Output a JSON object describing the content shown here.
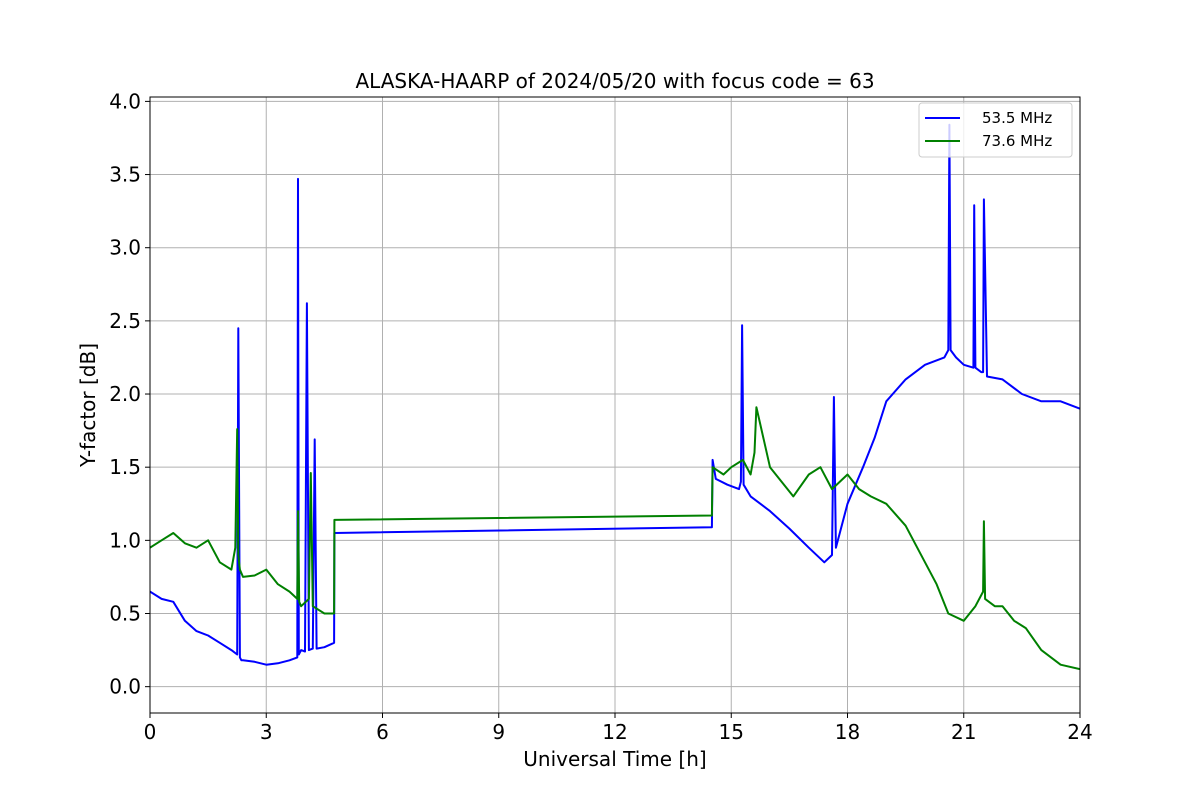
{
  "chart_data": {
    "type": "line",
    "title": "ALASKA-HAARP of 2024/05/20 with focus code = 63",
    "xlabel": "Universal Time [h]",
    "ylabel": "Y-factor [dB]",
    "xlim": [
      0,
      24
    ],
    "ylim": [
      -0.18,
      4.03
    ],
    "xticks": [
      0,
      3,
      6,
      9,
      12,
      15,
      18,
      21,
      24
    ],
    "xtick_labels": [
      "0",
      "3",
      "6",
      "9",
      "12",
      "15",
      "18",
      "21",
      "24"
    ],
    "yticks": [
      0.0,
      0.5,
      1.0,
      1.5,
      2.0,
      2.5,
      3.0,
      3.5,
      4.0
    ],
    "ytick_labels": [
      "0.0",
      "0.5",
      "1.0",
      "1.5",
      "2.0",
      "2.5",
      "3.0",
      "3.5",
      "4.0"
    ],
    "grid": true,
    "legend_position": "top-right",
    "series": [
      {
        "name": "53.5 MHz",
        "color": "#0000ff",
        "x": [
          0.0,
          0.3,
          0.6,
          0.9,
          1.2,
          1.5,
          1.8,
          2.1,
          2.25,
          2.28,
          2.32,
          2.36,
          2.4,
          2.7,
          3.0,
          3.3,
          3.6,
          3.8,
          3.82,
          3.84,
          3.9,
          4.0,
          4.05,
          4.1,
          4.2,
          4.25,
          4.3,
          4.5,
          4.75,
          4.76,
          14.5,
          14.52,
          14.6,
          14.9,
          15.2,
          15.25,
          15.28,
          15.32,
          15.5,
          16.0,
          16.5,
          17.0,
          17.4,
          17.6,
          17.65,
          17.7,
          17.8,
          18.0,
          18.4,
          18.7,
          19.0,
          19.5,
          20.0,
          20.5,
          20.6,
          20.63,
          20.66,
          20.8,
          21.0,
          21.25,
          21.27,
          21.3,
          21.45,
          21.5,
          21.52,
          21.6,
          22.0,
          22.5,
          23.0,
          23.5,
          24.0
        ],
        "y": [
          0.65,
          0.6,
          0.58,
          0.45,
          0.38,
          0.35,
          0.3,
          0.25,
          0.22,
          2.45,
          0.2,
          0.18,
          0.18,
          0.17,
          0.15,
          0.16,
          0.18,
          0.2,
          3.47,
          0.22,
          0.25,
          0.24,
          2.62,
          0.25,
          0.26,
          1.69,
          0.26,
          0.27,
          0.3,
          1.05,
          1.09,
          1.55,
          1.42,
          1.38,
          1.35,
          1.4,
          2.47,
          1.38,
          1.3,
          1.2,
          1.08,
          0.95,
          0.85,
          0.9,
          1.98,
          0.95,
          1.05,
          1.25,
          1.5,
          1.7,
          1.95,
          2.1,
          2.2,
          2.25,
          2.3,
          3.84,
          2.3,
          2.25,
          2.2,
          2.18,
          3.29,
          2.18,
          2.15,
          2.15,
          3.33,
          2.12,
          2.1,
          2.0,
          1.95,
          1.95,
          1.9
        ]
      },
      {
        "name": "73.6 MHz",
        "color": "#008000",
        "x": [
          0.0,
          0.3,
          0.6,
          0.9,
          1.2,
          1.5,
          1.8,
          2.1,
          2.2,
          2.25,
          2.28,
          2.32,
          2.4,
          2.7,
          3.0,
          3.3,
          3.6,
          3.8,
          3.82,
          3.85,
          3.9,
          4.1,
          4.15,
          4.2,
          4.5,
          4.75,
          4.76,
          14.5,
          14.52,
          14.8,
          15.0,
          15.3,
          15.5,
          15.6,
          15.65,
          16.0,
          16.3,
          16.6,
          17.0,
          17.3,
          17.6,
          18.0,
          18.3,
          18.6,
          19.0,
          19.5,
          20.0,
          20.3,
          20.6,
          21.0,
          21.3,
          21.5,
          21.52,
          21.55,
          21.8,
          22.0,
          22.3,
          22.6,
          23.0,
          23.5,
          24.0
        ],
        "y": [
          0.95,
          1.0,
          1.05,
          0.98,
          0.95,
          1.0,
          0.85,
          0.8,
          0.95,
          1.76,
          0.9,
          0.8,
          0.75,
          0.76,
          0.8,
          0.7,
          0.65,
          0.6,
          1.2,
          0.58,
          0.55,
          0.6,
          1.46,
          0.55,
          0.5,
          0.5,
          1.14,
          1.17,
          1.5,
          1.45,
          1.5,
          1.55,
          1.45,
          1.6,
          1.91,
          1.5,
          1.4,
          1.3,
          1.45,
          1.5,
          1.35,
          1.45,
          1.35,
          1.3,
          1.25,
          1.1,
          0.85,
          0.7,
          0.5,
          0.45,
          0.55,
          0.65,
          1.13,
          0.6,
          0.55,
          0.55,
          0.45,
          0.4,
          0.25,
          0.15,
          0.12
        ]
      }
    ]
  }
}
